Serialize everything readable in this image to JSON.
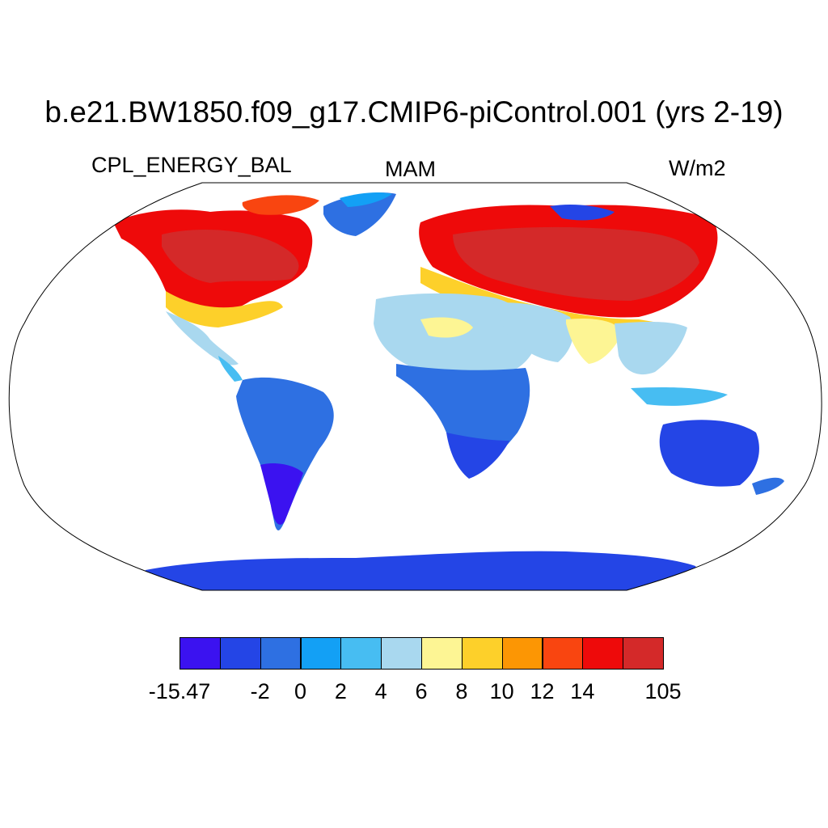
{
  "figure": {
    "title": "b.e21.BW1850.f09_g17.CMIP6-piControl.001 (yrs 2-19)",
    "variable": "CPL_ENERGY_BAL",
    "season": "MAM",
    "units": "W/m2"
  },
  "colorbar": {
    "colors": [
      "#3b12f0",
      "#2445e6",
      "#2e70e2",
      "#13a0f5",
      "#47bdf2",
      "#a9d8ef",
      "#fdf594",
      "#fdd02a",
      "#fc9604",
      "#f94510",
      "#ee0a0a",
      "#d42929"
    ],
    "tick_labels": [
      "-15.47",
      "-2",
      "0",
      "2",
      "4",
      "6",
      "8",
      "10",
      "12",
      "14",
      "105"
    ]
  },
  "map": {
    "projection": "Robinson",
    "field_palette": {
      "very_low": "#3b12f0",
      "low": "#2445e6",
      "mid_low": "#2e70e2",
      "cyan": "#13a0f5",
      "light_cyan": "#47bdf2",
      "pale_blue": "#a9d8ef",
      "pale_yellow": "#fdf594",
      "yellow": "#fdd02a",
      "orange": "#fc9604",
      "red_orange": "#f94510",
      "red": "#ee0a0a",
      "dark_red": "#d42929"
    }
  }
}
